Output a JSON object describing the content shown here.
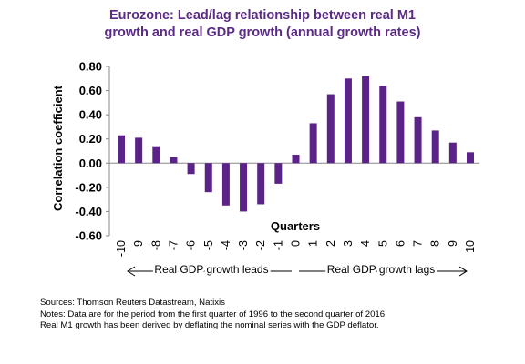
{
  "title": {
    "line1": "Eurozone: Lead/lag relationship between real M1",
    "line2": "growth and real GDP growth (annual growth rates)"
  },
  "chart_data": {
    "type": "bar",
    "title": "Eurozone: Lead/lag relationship between real M1 growth and real GDP growth (annual growth rates)",
    "xlabel": "Quarters",
    "ylabel": "Correlation coefficient",
    "ylim": [
      -0.6,
      0.8
    ],
    "yticks": [
      "-0.60",
      "-0.40",
      "-0.20",
      "0.00",
      "0.20",
      "0.40",
      "0.60",
      "0.80"
    ],
    "categories": [
      "-10",
      "-9",
      "-8",
      "-7",
      "-6",
      "-5",
      "-4",
      "-3",
      "-2",
      "-1",
      "0",
      "1",
      "2",
      "3",
      "4",
      "5",
      "6",
      "7",
      "8",
      "9",
      "10"
    ],
    "values": [
      0.23,
      0.21,
      0.14,
      0.05,
      -0.09,
      -0.24,
      -0.35,
      -0.4,
      -0.34,
      -0.17,
      0.07,
      0.33,
      0.57,
      0.7,
      0.72,
      0.64,
      0.51,
      0.38,
      0.27,
      0.17,
      0.09
    ],
    "bar_color": "#5b2287",
    "grid": false,
    "annotations": {
      "leads": "Real GDP growth leads",
      "lags": "Real GDP growth lags"
    }
  },
  "notes": {
    "sources": "Sources:  Thomson Reuters Datastream, Natixis",
    "line1": "Notes: Data are for the period from the first quarter of 1996 to the second quarter of 2016.",
    "line2": "Real M1 growth has been derived by deflating the nominal series with the GDP deflator."
  }
}
